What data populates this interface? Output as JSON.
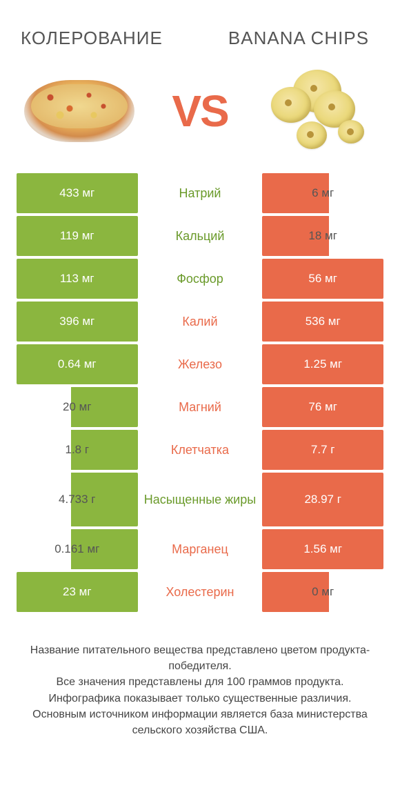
{
  "header": {
    "left_title": "КОЛЕРОВАНИЕ",
    "right_title": "BANANA CHIPS",
    "vs_text": "VS"
  },
  "colors": {
    "green": "#8bb63f",
    "orange": "#e96a4a",
    "mid_green": "#6a9a2a",
    "mid_orange": "#e96a4a"
  },
  "rows": [
    {
      "left": "433 мг",
      "mid": "Натрий",
      "right": "6 мг",
      "winner": "left",
      "left_full": true,
      "right_full": false,
      "tall": false
    },
    {
      "left": "119 мг",
      "mid": "Кальций",
      "right": "18 мг",
      "winner": "left",
      "left_full": true,
      "right_full": false,
      "tall": false
    },
    {
      "left": "113 мг",
      "mid": "Фосфор",
      "right": "56 мг",
      "winner": "left",
      "left_full": true,
      "right_full": true,
      "tall": false
    },
    {
      "left": "396 мг",
      "mid": "Калий",
      "right": "536 мг",
      "winner": "right",
      "left_full": true,
      "right_full": true,
      "tall": false
    },
    {
      "left": "0.64 мг",
      "mid": "Железо",
      "right": "1.25 мг",
      "winner": "right",
      "left_full": true,
      "right_full": true,
      "tall": false
    },
    {
      "left": "20 мг",
      "mid": "Магний",
      "right": "76 мг",
      "winner": "right",
      "left_full": false,
      "right_full": true,
      "tall": false
    },
    {
      "left": "1.8 г",
      "mid": "Клетчатка",
      "right": "7.7 г",
      "winner": "right",
      "left_full": false,
      "right_full": true,
      "tall": false
    },
    {
      "left": "4.733 г",
      "mid": "Насыщенные жиры",
      "right": "28.97 г",
      "winner": "left",
      "left_full": false,
      "right_full": true,
      "tall": true
    },
    {
      "left": "0.161 мг",
      "mid": "Марганец",
      "right": "1.56 мг",
      "winner": "right",
      "left_full": false,
      "right_full": true,
      "tall": false
    },
    {
      "left": "23 мг",
      "mid": "Холестерин",
      "right": "0 мг",
      "winner": "right",
      "left_full": true,
      "right_full": false,
      "tall": false
    }
  ],
  "footer_lines": [
    "Название питательного вещества представлено цветом продукта-победителя.",
    "Все значения представлены для 100 граммов продукта.",
    "Инфографика показывает только существенные различия.",
    "Основным источником информации является база министерства сельского хозяйства США."
  ]
}
